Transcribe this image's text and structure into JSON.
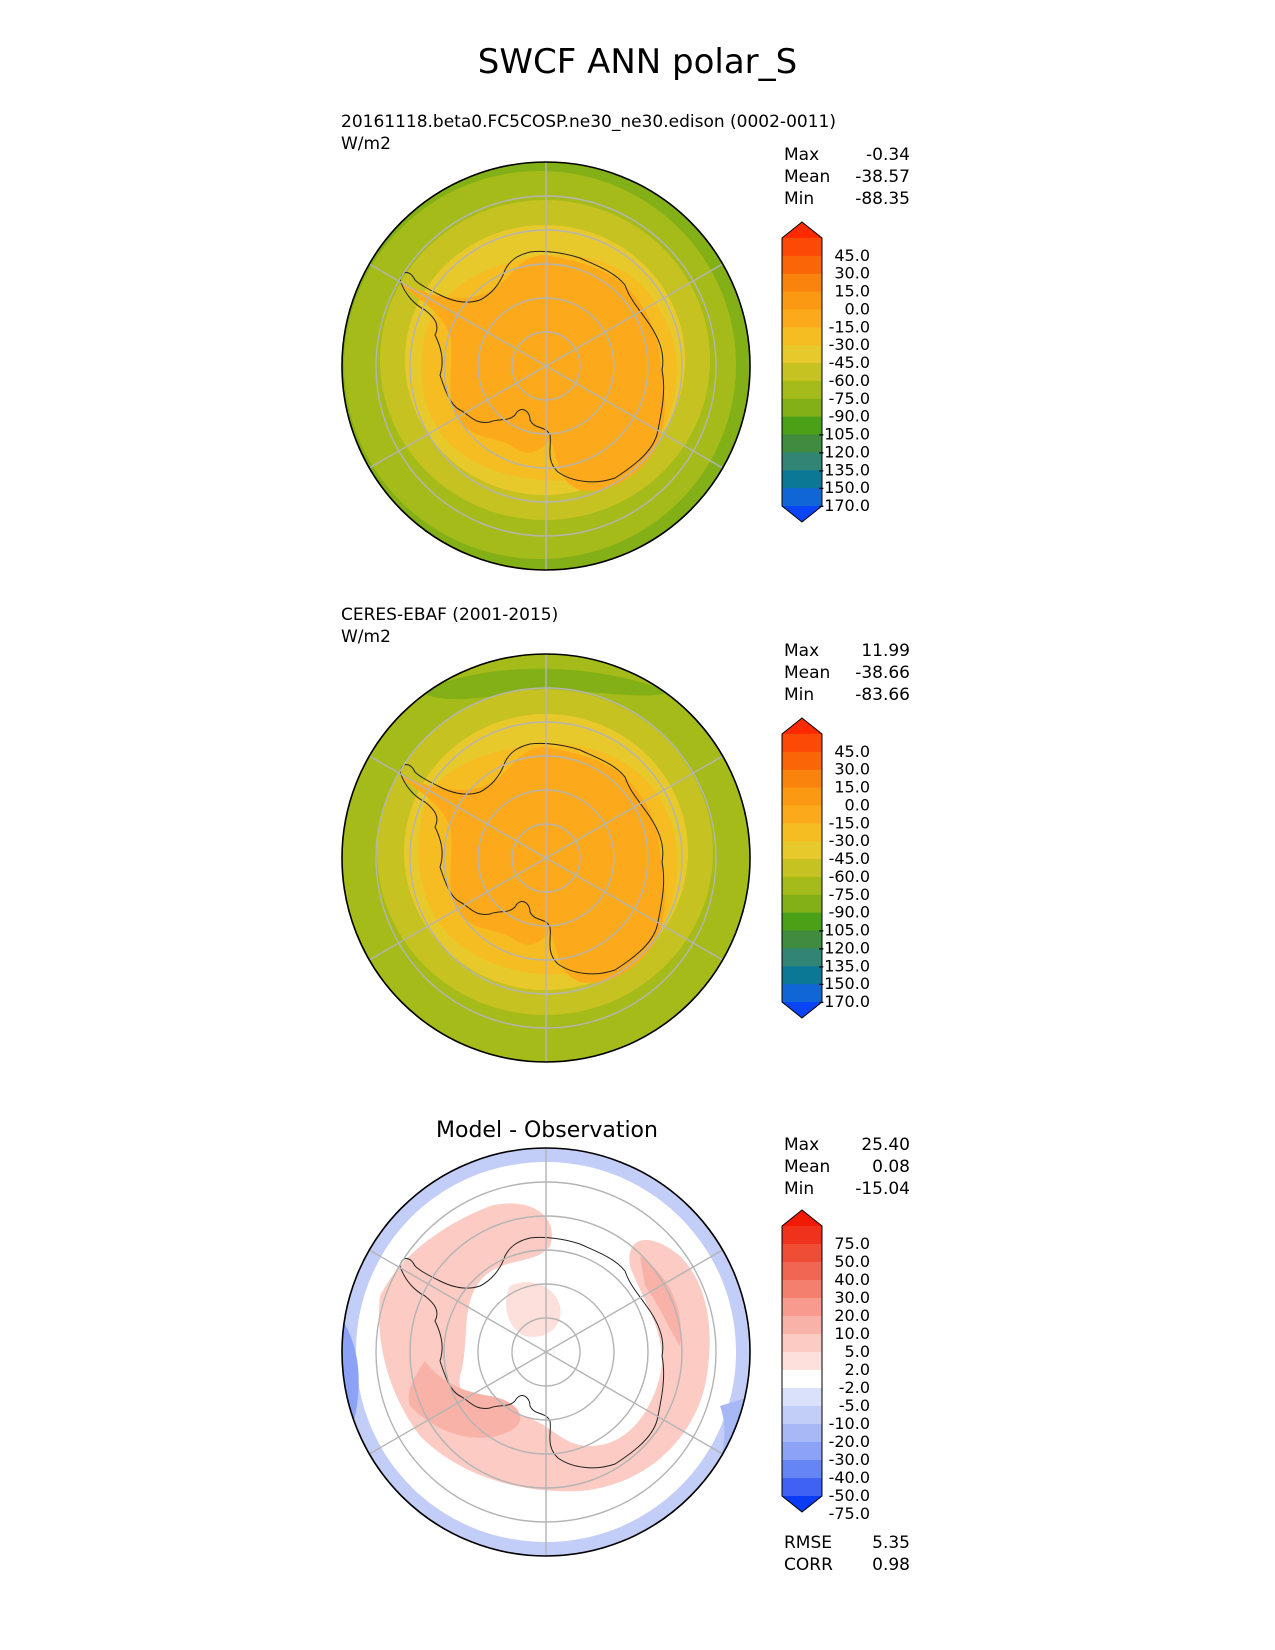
{
  "page": {
    "title": "SWCF ANN polar_S"
  },
  "colors": {
    "test_levels": [
      "#0a45f5",
      "#1166d6",
      "#0b7896",
      "#318574",
      "#3f8c40",
      "#4aa016",
      "#82b016",
      "#a5bb19",
      "#c5c222",
      "#e8c92c",
      "#f5bd22",
      "#fcaa1b",
      "#fb9913",
      "#fa830e",
      "#fa6508",
      "#fa4a05",
      "#ff2a00"
    ],
    "diff_levels": [
      "#0a3bf5",
      "#3f62f4",
      "#6685f5",
      "#8ba2f6",
      "#a7b8f7",
      "#c2cdf8",
      "#dae2fb",
      "#ffffff",
      "#fde0dc",
      "#fbcbc4",
      "#f9b2a8",
      "#f89a8d",
      "#f47f6e",
      "#f06652",
      "#f04d36",
      "#f0321c",
      "#f21a03"
    ]
  },
  "panels": [
    {
      "id": "test",
      "title": "20161118.beta0.FC5COSP.ne30_ne30.edison (0002-0011)",
      "units": "W/m2",
      "stats": [
        {
          "label": "Max",
          "value": "-0.34"
        },
        {
          "label": "Mean",
          "value": "-38.57"
        },
        {
          "label": "Min",
          "value": "-88.35"
        }
      ]
    },
    {
      "id": "ref",
      "title": "CERES-EBAF (2001-2015)",
      "units": "W/m2",
      "stats": [
        {
          "label": "Max",
          "value": "11.99"
        },
        {
          "label": "Mean",
          "value": "-38.66"
        },
        {
          "label": "Min",
          "value": "-83.66"
        }
      ]
    },
    {
      "id": "diff",
      "title": "Model - Observation",
      "stats": [
        {
          "label": "Max",
          "value": "25.40"
        },
        {
          "label": "Mean",
          "value": "0.08"
        },
        {
          "label": "Min",
          "value": "-15.04"
        }
      ],
      "metrics": [
        {
          "label": "RMSE",
          "value": "5.35"
        },
        {
          "label": "CORR",
          "value": "0.98"
        }
      ]
    }
  ],
  "chart_data": [
    {
      "type": "heatmap",
      "projection": "south-polar-stereographic",
      "title": "20161118.beta0.FC5COSP.ne30_ne30.edison (0002-0011)",
      "units": "W/m2",
      "contour_levels": [
        -170.0,
        -150.0,
        -135.0,
        -120.0,
        -105.0,
        -90.0,
        -75.0,
        -60.0,
        -45.0,
        -30.0,
        -15.0,
        0.0,
        15.0,
        30.0,
        45.0
      ],
      "colorbar_ticks": [
        "45.0",
        "30.0",
        "15.0",
        "0.0",
        "-15.0",
        "-30.0",
        "-45.0",
        "-60.0",
        "-75.0",
        "-90.0",
        "-105.0",
        "-120.0",
        "-135.0",
        "-150.0",
        "-170.0"
      ],
      "stats": {
        "max": -0.34,
        "mean": -38.57,
        "min": -88.35
      }
    },
    {
      "type": "heatmap",
      "projection": "south-polar-stereographic",
      "title": "CERES-EBAF (2001-2015)",
      "units": "W/m2",
      "contour_levels": [
        -170.0,
        -150.0,
        -135.0,
        -120.0,
        -105.0,
        -90.0,
        -75.0,
        -60.0,
        -45.0,
        -30.0,
        -15.0,
        0.0,
        15.0,
        30.0,
        45.0
      ],
      "colorbar_ticks": [
        "45.0",
        "30.0",
        "15.0",
        "0.0",
        "-15.0",
        "-30.0",
        "-45.0",
        "-60.0",
        "-75.0",
        "-90.0",
        "-105.0",
        "-120.0",
        "-135.0",
        "-150.0",
        "-170.0"
      ],
      "stats": {
        "max": 11.99,
        "mean": -38.66,
        "min": -83.66
      }
    },
    {
      "type": "heatmap",
      "projection": "south-polar-stereographic",
      "title": "Model - Observation",
      "contour_levels": [
        -75.0,
        -50.0,
        -40.0,
        -30.0,
        -20.0,
        -10.0,
        -5.0,
        -2.0,
        2.0,
        5.0,
        10.0,
        20.0,
        30.0,
        40.0,
        50.0,
        75.0
      ],
      "colorbar_ticks": [
        "75.0",
        "50.0",
        "40.0",
        "30.0",
        "20.0",
        "10.0",
        "5.0",
        "2.0",
        "-2.0",
        "-5.0",
        "-10.0",
        "-20.0",
        "-30.0",
        "-40.0",
        "-50.0",
        "-75.0"
      ],
      "stats": {
        "max": 25.4,
        "mean": 0.08,
        "min": -15.04
      },
      "metrics": {
        "rmse": 5.35,
        "corr": 0.98
      }
    }
  ]
}
